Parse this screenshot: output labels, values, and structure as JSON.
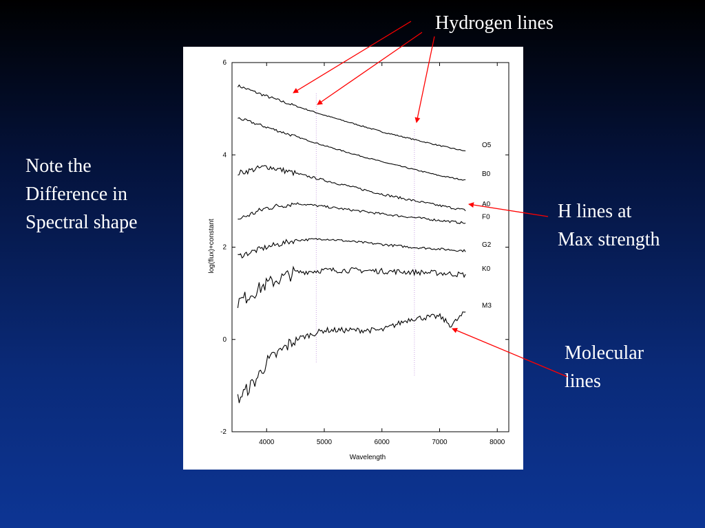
{
  "annotations": {
    "hydrogen": "Hydrogen lines",
    "note": [
      "Note the",
      "Difference in",
      "Spectral shape"
    ],
    "h_max": [
      "H lines at",
      "Max strength"
    ],
    "molecular": [
      "Molecular",
      " lines"
    ]
  },
  "colors": {
    "arrow": "#ff0000",
    "marker_line": "#c8a0e0",
    "spectrum": "#000000",
    "text": "#ffffff"
  },
  "chart_data": {
    "type": "line",
    "xlabel": "Wavelength",
    "ylabel": "log(flux)+constant",
    "xlim": [
      3400,
      8200
    ],
    "ylim": [
      -2,
      6
    ],
    "xticks": [
      4000,
      5000,
      6000,
      7000,
      8000
    ],
    "yticks": [
      -2,
      0,
      2,
      4,
      6
    ],
    "grid": false,
    "marker_lines_x": [
      4861,
      6563
    ],
    "series": [
      {
        "name": "O5",
        "x": [
          3500,
          4000,
          4500,
          5000,
          5500,
          6000,
          6500,
          7000,
          7450
        ],
        "values": [
          5.5,
          5.27,
          5.06,
          4.86,
          4.68,
          4.5,
          4.35,
          4.2,
          4.08
        ]
      },
      {
        "name": "B0",
        "x": [
          3500,
          4000,
          4500,
          5000,
          5500,
          6000,
          6500,
          7000,
          7450
        ],
        "values": [
          4.8,
          4.6,
          4.4,
          4.2,
          4.02,
          3.85,
          3.7,
          3.55,
          3.45
        ]
      },
      {
        "name": "A0",
        "x": [
          3500,
          4000,
          4500,
          5000,
          5500,
          6000,
          6500,
          7000,
          7450
        ],
        "values": [
          3.6,
          3.75,
          3.6,
          3.45,
          3.3,
          3.15,
          3.02,
          2.9,
          2.8
        ]
      },
      {
        "name": "F0",
        "x": [
          3500,
          4000,
          4500,
          5000,
          5500,
          6000,
          6500,
          7000,
          7450
        ],
        "values": [
          2.6,
          2.85,
          2.95,
          2.88,
          2.8,
          2.72,
          2.65,
          2.58,
          2.52
        ]
      },
      {
        "name": "G2",
        "x": [
          3500,
          4000,
          4500,
          5000,
          5500,
          6000,
          6500,
          7000,
          7450
        ],
        "values": [
          1.8,
          2.0,
          2.15,
          2.18,
          2.12,
          2.06,
          2.0,
          1.96,
          1.92
        ]
      },
      {
        "name": "K0",
        "x": [
          3500,
          4000,
          4500,
          5000,
          5500,
          6000,
          6500,
          7000,
          7450
        ],
        "values": [
          0.8,
          1.2,
          1.45,
          1.5,
          1.5,
          1.48,
          1.46,
          1.44,
          1.4
        ]
      },
      {
        "name": "M3",
        "x": [
          3500,
          3800,
          4000,
          4500,
          5000,
          5500,
          6000,
          6500,
          7000,
          7200,
          7450
        ],
        "values": [
          -1.3,
          -0.9,
          -0.5,
          0.0,
          0.2,
          0.2,
          0.2,
          0.45,
          0.5,
          0.3,
          0.6
        ]
      }
    ]
  }
}
